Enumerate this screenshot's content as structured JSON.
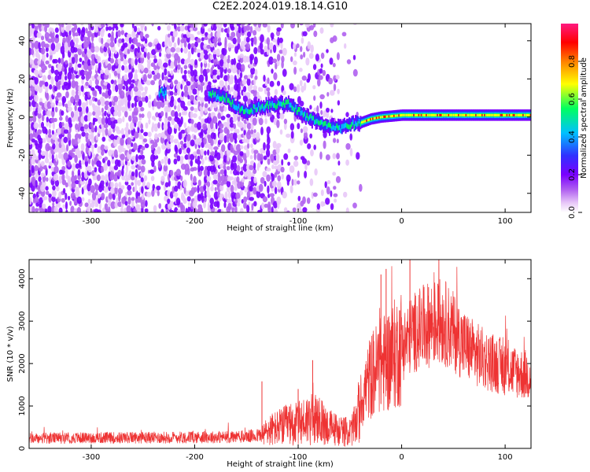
{
  "title": "C2E2.2024.019.18.14.G10",
  "colors": {
    "snr_line": "#ee3333",
    "spectrogram_palette": [
      "#ffffff",
      "#e8c8f8",
      "#b060f0",
      "#7a00ff",
      "#3030ff",
      "#00c0ff",
      "#00ff60",
      "#ffff00",
      "#ff8000",
      "#ff0000",
      "#ff1a80"
    ]
  },
  "chart_data": [
    {
      "type": "heatmap",
      "xlabel": "Height of straight line (km)",
      "ylabel": "Frequency (Hz)",
      "xlim": [
        -360,
        125
      ],
      "ylim": [
        -50,
        49
      ],
      "x_ticks": [
        -300,
        -200,
        -100,
        0,
        100
      ],
      "x_tick_labels": [
        "-300",
        "-200",
        "-100",
        "0",
        "100"
      ],
      "y_ticks": [
        -40,
        -20,
        0,
        20,
        40
      ],
      "y_tick_labels": [
        "-40",
        "-20",
        "0",
        "20",
        "40"
      ],
      "colorbar": {
        "label": "Normalized spectral amplitude",
        "range": [
          0,
          1
        ],
        "ticks": [
          0.0,
          0.2,
          0.4,
          0.6,
          0.8
        ],
        "tick_labels": [
          "0.0",
          "0.2",
          "0.4",
          "0.6",
          "0.8"
        ]
      },
      "ridge": {
        "x": [
          -235,
          -228,
          -185,
          -170,
          -160,
          -150,
          -140,
          -130,
          -110,
          -95,
          -80,
          -70,
          -60,
          -50,
          -40,
          -30,
          -20,
          0,
          20,
          50,
          80,
          110,
          125
        ],
        "y": [
          13,
          12,
          12,
          10,
          5,
          3,
          5,
          6,
          7,
          1,
          -3,
          -5,
          -6,
          -4,
          -3,
          -1,
          0,
          1,
          1,
          1,
          1,
          1,
          1
        ]
      }
    },
    {
      "type": "line",
      "xlabel": "Height of straight line (km)",
      "ylabel": "SNR (10 * v/v)",
      "xlim": [
        -360,
        125
      ],
      "ylim": [
        0,
        4450
      ],
      "x_ticks": [
        -300,
        -200,
        -100,
        0,
        100
      ],
      "x_tick_labels": [
        "-300",
        "-200",
        "-100",
        "0",
        "100"
      ],
      "y_ticks": [
        0,
        1000,
        2000,
        3000,
        4000
      ],
      "y_tick_labels": [
        "0",
        "1000",
        "2000",
        "3000",
        "4000"
      ],
      "series": [
        {
          "x": [
            -360,
            -340,
            -320,
            -300,
            -280,
            -260,
            -240,
            -220,
            -200,
            -180,
            -160,
            -150,
            -140,
            -133,
            -130,
            -120,
            -110,
            -100,
            -90,
            -80,
            -70,
            -60,
            -50,
            -45,
            -40,
            -35,
            -30,
            -25,
            -20,
            -15,
            -10,
            -5,
            0,
            5,
            10,
            20,
            30,
            40,
            50,
            60,
            70,
            80,
            90,
            100,
            110,
            125
          ],
          "y": [
            230,
            240,
            245,
            250,
            250,
            255,
            255,
            260,
            265,
            265,
            270,
            280,
            300,
            320,
            420,
            480,
            560,
            580,
            700,
            650,
            500,
            420,
            380,
            550,
            1000,
            1400,
            1700,
            1850,
            1950,
            2050,
            2150,
            2250,
            2400,
            2550,
            2700,
            2850,
            2950,
            3000,
            2750,
            2450,
            2250,
            2100,
            2000,
            1900,
            1800,
            1700
          ]
        }
      ],
      "spikes": [
        {
          "x": -135,
          "y": 1580
        },
        {
          "x": -100,
          "y": 1400
        },
        {
          "x": -86,
          "y": 2080
        },
        {
          "x": -20,
          "y": 4100
        },
        {
          "x": -15,
          "y": 4230
        },
        {
          "x": 8,
          "y": 4450
        },
        {
          "x": 26,
          "y": 3800
        },
        {
          "x": 35,
          "y": 3880
        }
      ]
    }
  ]
}
